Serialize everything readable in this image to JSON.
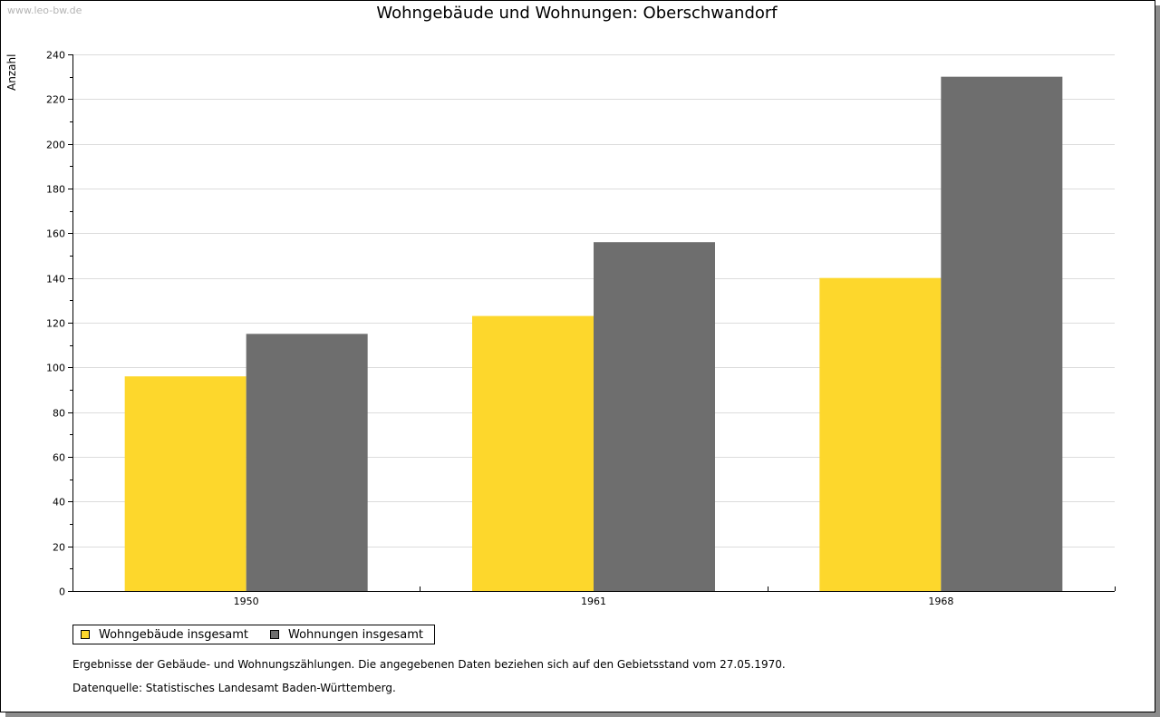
{
  "watermark": "www.leo-bw.de",
  "footnotes": {
    "note": "Ergebnisse der Gebäude- und Wohnungszählungen. Die angegebenen Daten beziehen sich auf den Gebietsstand vom 27.05.1970.",
    "source": "Datenquelle: Statistisches Landesamt Baden-Württemberg."
  },
  "chart_data": {
    "type": "bar",
    "title": "Wohngebäude und Wohnungen: Oberschwandorf",
    "xlabel": "",
    "ylabel": "Anzahl",
    "categories": [
      "1950",
      "1961",
      "1968"
    ],
    "ylim": [
      0,
      240
    ],
    "yticks": [
      0,
      20,
      40,
      60,
      80,
      100,
      120,
      140,
      160,
      180,
      200,
      220,
      240
    ],
    "grid": true,
    "legend_position": "bottom-left",
    "series": [
      {
        "name": "Wohngebäude insgesamt",
        "color": "#fdd72c",
        "values": [
          96,
          123,
          140
        ]
      },
      {
        "name": "Wohnungen insgesamt",
        "color": "#6e6e6e",
        "values": [
          115,
          156,
          230
        ]
      }
    ]
  }
}
